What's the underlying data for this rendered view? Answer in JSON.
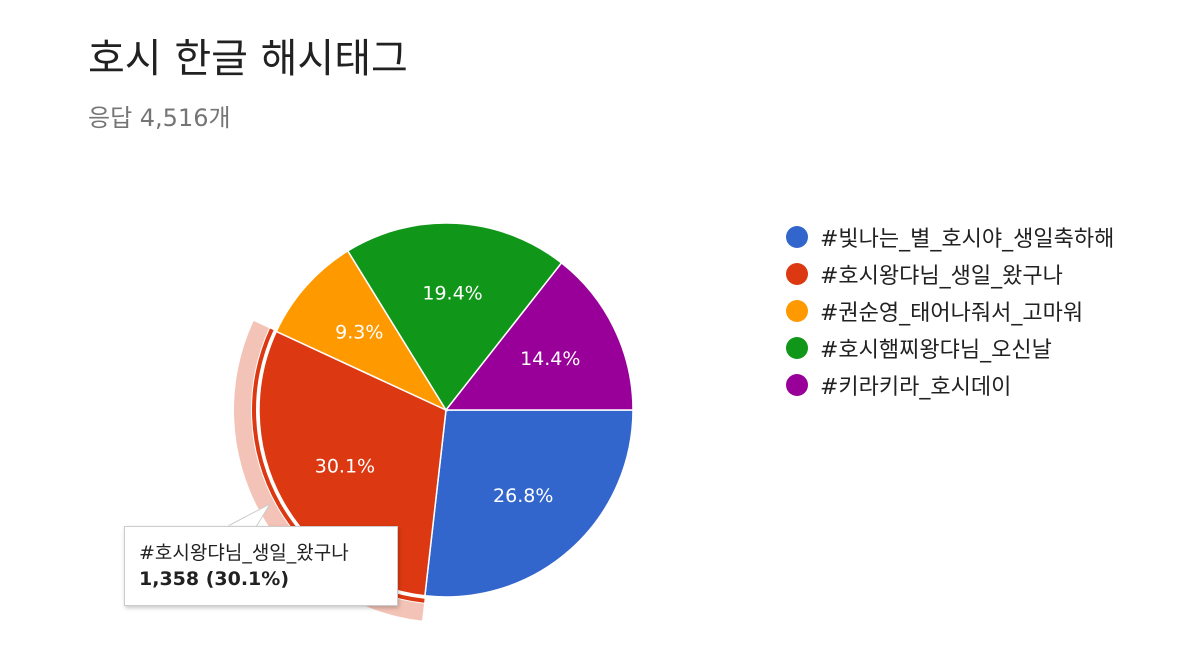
{
  "header": {
    "title": "호시 한글 해시태그",
    "response_count": "응답 4,516개"
  },
  "chart_data": {
    "type": "pie",
    "title": "호시 한글 해시태그",
    "slices": [
      {
        "label": "#빛나는_별_호시야_생일축하해",
        "percent": 26.8,
        "percent_label": "26.8%",
        "color": "#3366cc"
      },
      {
        "label": "#호시왕댜님_생일_왔구나",
        "percent": 30.1,
        "percent_label": "30.1%",
        "color": "#dc3912",
        "count": 1358
      },
      {
        "label": "#권순영_태어나줘서_고마워",
        "percent": 9.3,
        "percent_label": "9.3%",
        "color": "#ff9900"
      },
      {
        "label": "#호시햄찌왕댜님_오신날",
        "percent": 19.4,
        "percent_label": "19.4%",
        "color": "#109618"
      },
      {
        "label": "#키라키라_호시데이",
        "percent": 14.4,
        "percent_label": "14.4%",
        "color": "#990099"
      }
    ],
    "highlighted_slice": 1,
    "legend_position": "right"
  },
  "tooltip": {
    "name": "#호시왕댜님_생일_왔구나",
    "value": "1,358 (30.1%)"
  }
}
